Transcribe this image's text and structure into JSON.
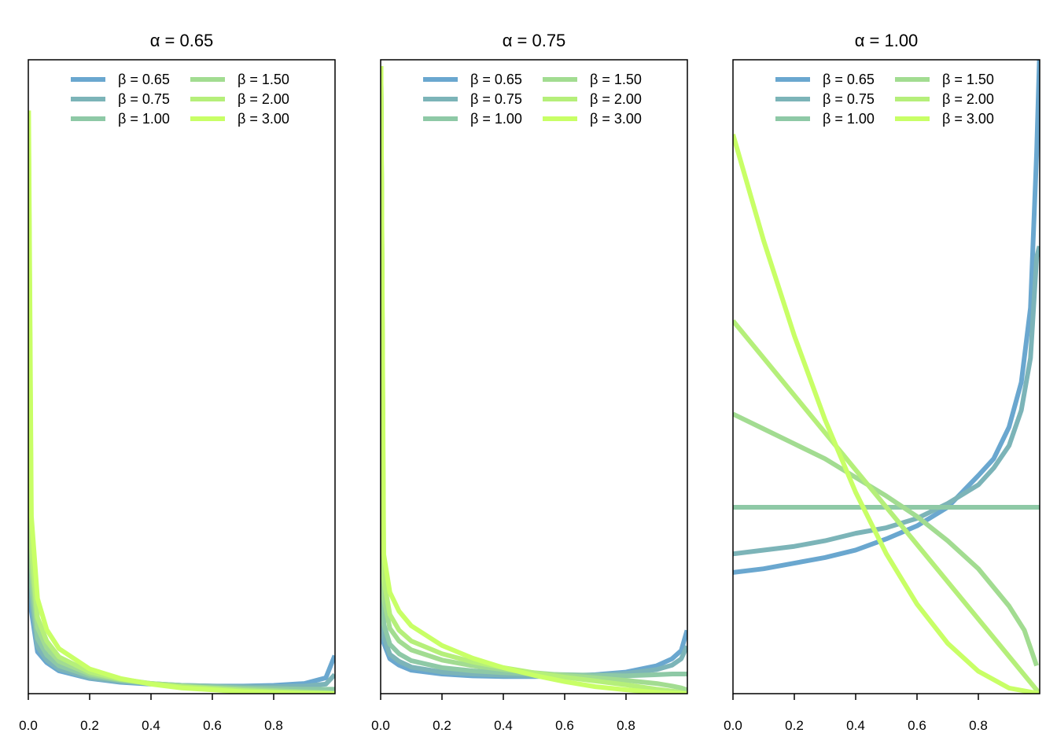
{
  "colors": {
    "beta_0.65": "#6aa7cf",
    "beta_0.75": "#7cb4b8",
    "beta_1.00": "#8ec9a6",
    "beta_1.50": "#a2dc91",
    "beta_2.00": "#b5ef7a",
    "beta_3.00": "#c8ff66"
  },
  "chart_data": [
    {
      "type": "line",
      "title": "α = 0.65",
      "alpha": 0.65,
      "xlabel": "",
      "ylabel": "",
      "xlim": [
        0,
        1
      ],
      "x_ticks": [
        "0.0",
        "0.2",
        "0.4",
        "0.6",
        "0.8"
      ],
      "y_axis_labels": false,
      "grid": false,
      "legend_position": "top",
      "legend": [
        "β = 0.65",
        "β = 0.75",
        "β = 1.00",
        "β = 1.50",
        "β = 2.00",
        "β = 3.00"
      ],
      "series": [
        {
          "name": "β = 0.65",
          "beta": 0.65,
          "color_key": "beta_0.65",
          "x": [
            0.001,
            0.01,
            0.03,
            0.06,
            0.1,
            0.2,
            0.3,
            0.4,
            0.5,
            0.6,
            0.7,
            0.8,
            0.9,
            0.97,
            0.999
          ],
          "y": [
            0.73,
            0.13,
            0.066,
            0.049,
            0.036,
            0.024,
            0.018,
            0.015,
            0.013,
            0.012,
            0.012,
            0.013,
            0.016,
            0.025,
            0.06
          ]
        },
        {
          "name": "β = 0.75",
          "beta": 0.75,
          "color_key": "beta_0.75",
          "x": [
            0.001,
            0.01,
            0.03,
            0.06,
            0.1,
            0.2,
            0.3,
            0.4,
            0.5,
            0.6,
            0.7,
            0.8,
            0.9,
            0.97,
            0.999
          ],
          "y": [
            0.76,
            0.15,
            0.074,
            0.053,
            0.039,
            0.025,
            0.019,
            0.016,
            0.013,
            0.012,
            0.011,
            0.011,
            0.012,
            0.015,
            0.03
          ]
        },
        {
          "name": "β = 1.00",
          "beta": 1.0,
          "color_key": "beta_1.00",
          "x": [
            0.001,
            0.01,
            0.03,
            0.06,
            0.1,
            0.2,
            0.3,
            0.4,
            0.5,
            0.6,
            0.7,
            0.8,
            0.9,
            0.97,
            0.999
          ],
          "y": [
            0.82,
            0.17,
            0.087,
            0.061,
            0.044,
            0.028,
            0.021,
            0.016,
            0.013,
            0.011,
            0.009,
            0.008,
            0.007,
            0.007,
            0.007
          ]
        },
        {
          "name": "β = 1.50",
          "beta": 1.5,
          "color_key": "beta_1.50",
          "x": [
            0.001,
            0.01,
            0.03,
            0.06,
            0.1,
            0.2,
            0.3,
            0.4,
            0.5,
            0.6,
            0.7,
            0.8,
            0.9,
            0.97,
            0.999
          ],
          "y": [
            0.85,
            0.2,
            0.104,
            0.072,
            0.051,
            0.031,
            0.022,
            0.016,
            0.012,
            0.009,
            0.007,
            0.005,
            0.003,
            0.002,
            0.001
          ]
        },
        {
          "name": "β = 2.00",
          "beta": 2.0,
          "color_key": "beta_2.00",
          "x": [
            0.001,
            0.01,
            0.03,
            0.06,
            0.1,
            0.2,
            0.3,
            0.4,
            0.5,
            0.6,
            0.7,
            0.8,
            0.9,
            0.97,
            0.999
          ],
          "y": [
            0.88,
            0.23,
            0.12,
            0.083,
            0.058,
            0.034,
            0.023,
            0.016,
            0.011,
            0.008,
            0.005,
            0.003,
            0.0015,
            0.0004,
            0.0
          ]
        },
        {
          "name": "β = 3.00",
          "beta": 3.0,
          "color_key": "beta_3.00",
          "x": [
            0.001,
            0.01,
            0.03,
            0.06,
            0.1,
            0.2,
            0.3,
            0.4,
            0.5,
            0.6,
            0.7,
            0.8,
            0.9,
            0.97,
            0.999
          ],
          "y": [
            0.92,
            0.28,
            0.15,
            0.101,
            0.071,
            0.039,
            0.024,
            0.015,
            0.009,
            0.006,
            0.003,
            0.0015,
            0.0005,
            0.0001,
            0.0
          ]
        }
      ]
    },
    {
      "type": "line",
      "title": "α = 0.75",
      "alpha": 0.75,
      "xlabel": "",
      "ylabel": "",
      "xlim": [
        0,
        1
      ],
      "x_ticks": [
        "0.0",
        "0.2",
        "0.4",
        "0.6",
        "0.8"
      ],
      "y_axis_labels": false,
      "grid": false,
      "legend_position": "top",
      "legend": [
        "β = 0.65",
        "β = 0.75",
        "β = 1.00",
        "β = 1.50",
        "β = 2.00",
        "β = 3.00"
      ],
      "series": [
        {
          "name": "β = 0.65",
          "beta": 0.65,
          "color_key": "beta_0.65",
          "x": [
            0.001,
            0.01,
            0.03,
            0.06,
            0.1,
            0.2,
            0.3,
            0.4,
            0.5,
            0.6,
            0.7,
            0.8,
            0.9,
            0.95,
            0.98,
            0.999
          ],
          "y": [
            0.98,
            0.08,
            0.055,
            0.045,
            0.037,
            0.031,
            0.028,
            0.027,
            0.027,
            0.028,
            0.03,
            0.034,
            0.044,
            0.055,
            0.068,
            0.1
          ]
        },
        {
          "name": "β = 0.75",
          "beta": 0.75,
          "color_key": "beta_0.75",
          "x": [
            0.001,
            0.01,
            0.03,
            0.06,
            0.1,
            0.2,
            0.3,
            0.4,
            0.5,
            0.6,
            0.7,
            0.8,
            0.9,
            0.95,
            0.98,
            0.999
          ],
          "y": [
            0.99,
            0.09,
            0.062,
            0.051,
            0.042,
            0.034,
            0.031,
            0.029,
            0.028,
            0.028,
            0.029,
            0.032,
            0.038,
            0.045,
            0.055,
            0.075
          ]
        },
        {
          "name": "β = 1.00",
          "beta": 1.0,
          "color_key": "beta_1.00",
          "x": [
            0.001,
            0.01,
            0.03,
            0.06,
            0.1,
            0.2,
            0.3,
            0.4,
            0.5,
            0.6,
            0.7,
            0.8,
            0.9,
            0.95,
            0.98,
            0.999
          ],
          "y": [
            0.99,
            0.11,
            0.078,
            0.063,
            0.052,
            0.041,
            0.036,
            0.033,
            0.031,
            0.03,
            0.029,
            0.028,
            0.03,
            0.031,
            0.031,
            0.031
          ]
        },
        {
          "name": "β = 1.50",
          "beta": 1.5,
          "color_key": "beta_1.50",
          "x": [
            0.001,
            0.01,
            0.03,
            0.06,
            0.1,
            0.2,
            0.3,
            0.4,
            0.5,
            0.6,
            0.7,
            0.8,
            0.9,
            0.95,
            0.98,
            0.999
          ],
          "y": [
            0.99,
            0.15,
            0.103,
            0.083,
            0.069,
            0.053,
            0.044,
            0.038,
            0.033,
            0.029,
            0.025,
            0.021,
            0.016,
            0.012,
            0.009,
            0.006
          ]
        },
        {
          "name": "β = 2.00",
          "beta": 2.0,
          "color_key": "beta_2.00",
          "x": [
            0.001,
            0.01,
            0.03,
            0.06,
            0.1,
            0.2,
            0.3,
            0.4,
            0.5,
            0.6,
            0.7,
            0.8,
            0.9,
            0.95,
            0.98,
            0.999
          ],
          "y": [
            0.99,
            0.18,
            0.125,
            0.1,
            0.083,
            0.063,
            0.05,
            0.041,
            0.033,
            0.026,
            0.02,
            0.014,
            0.007,
            0.004,
            0.002,
            0.0
          ]
        },
        {
          "name": "β = 3.00",
          "beta": 3.0,
          "color_key": "beta_3.00",
          "x": [
            0.001,
            0.01,
            0.03,
            0.06,
            0.1,
            0.2,
            0.3,
            0.4,
            0.5,
            0.6,
            0.7,
            0.8,
            0.9,
            0.95,
            0.98,
            0.999
          ],
          "y": [
            0.99,
            0.22,
            0.16,
            0.13,
            0.107,
            0.076,
            0.056,
            0.041,
            0.029,
            0.019,
            0.011,
            0.006,
            0.002,
            0.0008,
            0.0002,
            0.0
          ]
        }
      ]
    },
    {
      "type": "line",
      "title": "α = 1.00",
      "alpha": 1.0,
      "xlabel": "",
      "ylabel": "",
      "xlim": [
        0,
        1
      ],
      "x_ticks": [
        "0.0",
        "0.2",
        "0.4",
        "0.6",
        "0.8"
      ],
      "y_axis_labels": false,
      "grid": false,
      "legend_position": "top",
      "legend": [
        "β = 0.65",
        "β = 0.75",
        "β = 1.00",
        "β = 1.50",
        "β = 2.00",
        "β = 3.00"
      ],
      "series": [
        {
          "name": "β = 0.65",
          "beta": 0.65,
          "color_key": "beta_0.65",
          "x": [
            0.0,
            0.1,
            0.2,
            0.3,
            0.4,
            0.5,
            0.6,
            0.7,
            0.8,
            0.85,
            0.9,
            0.94,
            0.97,
            0.99,
            0.999
          ],
          "y": [
            0.65,
            0.67,
            0.7,
            0.73,
            0.77,
            0.83,
            0.9,
            1.0,
            1.17,
            1.26,
            1.43,
            1.67,
            2.07,
            2.9,
            3.4
          ]
        },
        {
          "name": "β = 0.75",
          "beta": 0.75,
          "color_key": "beta_0.75",
          "x": [
            0.0,
            0.1,
            0.2,
            0.3,
            0.4,
            0.5,
            0.6,
            0.7,
            0.8,
            0.85,
            0.9,
            0.94,
            0.97,
            0.99,
            0.999
          ],
          "y": [
            0.75,
            0.77,
            0.79,
            0.82,
            0.86,
            0.89,
            0.94,
            1.02,
            1.12,
            1.21,
            1.33,
            1.52,
            1.8,
            2.34,
            2.4
          ]
        },
        {
          "name": "β = 1.00",
          "beta": 1.0,
          "color_key": "beta_1.00",
          "x": [
            0.0,
            1.0
          ],
          "y": [
            1.0,
            1.0
          ]
        },
        {
          "name": "β = 1.50",
          "beta": 1.5,
          "color_key": "beta_1.50",
          "x": [
            0.0,
            0.1,
            0.2,
            0.3,
            0.4,
            0.5,
            0.6,
            0.7,
            0.8,
            0.9,
            0.95,
            0.99
          ],
          "y": [
            1.5,
            1.42,
            1.34,
            1.26,
            1.16,
            1.06,
            0.95,
            0.82,
            0.67,
            0.47,
            0.34,
            0.15
          ]
        },
        {
          "name": "β = 2.00",
          "beta": 2.0,
          "color_key": "beta_2.00",
          "x": [
            0.0,
            1.0
          ],
          "y": [
            2.0,
            0.0
          ]
        },
        {
          "name": "β = 3.00",
          "beta": 3.0,
          "color_key": "beta_3.00",
          "x": [
            0.0,
            0.1,
            0.2,
            0.3,
            0.4,
            0.5,
            0.6,
            0.7,
            0.8,
            0.9,
            1.0
          ],
          "y": [
            3.0,
            2.43,
            1.92,
            1.47,
            1.08,
            0.75,
            0.48,
            0.27,
            0.12,
            0.03,
            0.0
          ]
        }
      ]
    }
  ]
}
